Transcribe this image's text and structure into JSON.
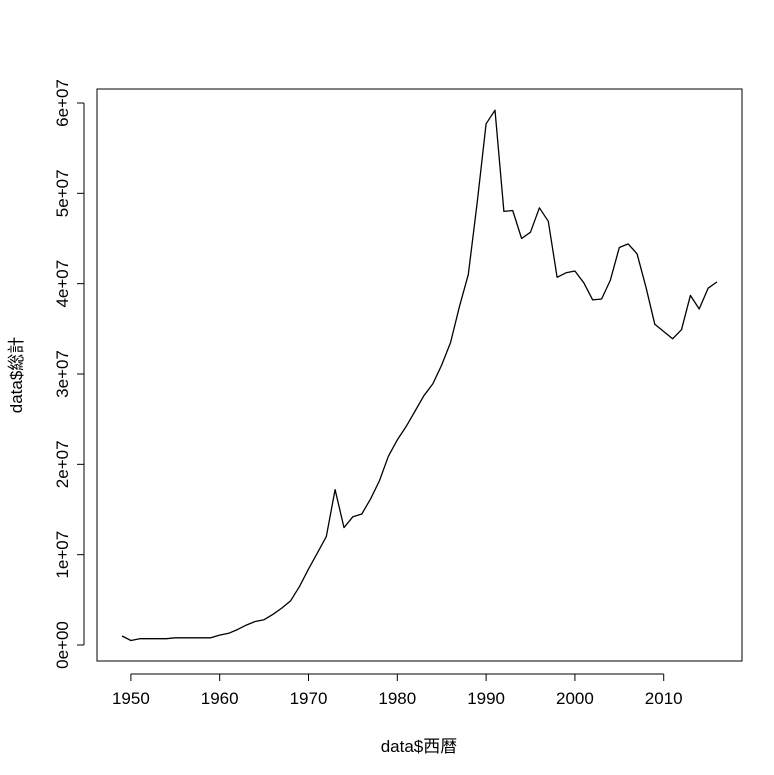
{
  "chart_data": {
    "type": "line",
    "title": "",
    "xlabel": "data$西暦",
    "ylabel": "data$総計",
    "xlim": [
      1949,
      2016
    ],
    "ylim": [
      0,
      60000000
    ],
    "x_ticks": [
      1950,
      1960,
      1970,
      1980,
      1990,
      2000,
      2010
    ],
    "x_tick_labels": [
      "1950",
      "1960",
      "1970",
      "1980",
      "1990",
      "2000",
      "2010"
    ],
    "y_ticks": [
      0,
      10000000,
      20000000,
      30000000,
      40000000,
      50000000,
      60000000
    ],
    "y_tick_labels": [
      "0e+00",
      "1e+07",
      "2e+07",
      "3e+07",
      "4e+07",
      "5e+07",
      "6e+07"
    ],
    "grid": false,
    "legend": "none",
    "line_color": "#000000",
    "series": [
      {
        "x": [
          1949,
          1950,
          1951,
          1952,
          1953,
          1954,
          1955,
          1956,
          1957,
          1958,
          1959,
          1960,
          1961,
          1962,
          1963,
          1964,
          1965,
          1966,
          1967,
          1968,
          1969,
          1970,
          1971,
          1972,
          1973,
          1974,
          1975,
          1976,
          1977,
          1978,
          1979,
          1980,
          1981,
          1982,
          1983,
          1984,
          1985,
          1986,
          1987,
          1988,
          1989,
          1990,
          1991,
          1992,
          1993,
          1994,
          1995,
          1996,
          1997,
          1998,
          1999,
          2000,
          2001,
          2002,
          2003,
          2004,
          2005,
          2006,
          2007,
          2008,
          2009,
          2010,
          2011,
          2012,
          2013,
          2014,
          2015,
          2016
        ],
        "values": [
          1000000,
          500000,
          700000,
          700000,
          700000,
          700000,
          800000,
          800000,
          800000,
          800000,
          800000,
          1100000,
          1300000,
          1700000,
          2200000,
          2600000,
          2800000,
          3400000,
          4100000,
          4900000,
          6500000,
          8400000,
          10200000,
          12000000,
          17200000,
          13000000,
          14200000,
          14500000,
          16200000,
          18200000,
          20900000,
          22700000,
          24200000,
          25900000,
          27600000,
          28900000,
          31000000,
          33500000,
          37500000,
          41000000,
          49000000,
          57700000,
          59200000,
          48000000,
          48100000,
          45000000,
          45700000,
          48400000,
          46900000,
          40700000,
          41200000,
          41400000,
          40100000,
          38200000,
          38300000,
          40400000,
          44000000,
          44400000,
          43300000,
          39600000,
          35500000,
          34700000,
          33900000,
          34900000,
          38700000,
          37200000,
          39500000,
          40200000
        ]
      }
    ]
  }
}
